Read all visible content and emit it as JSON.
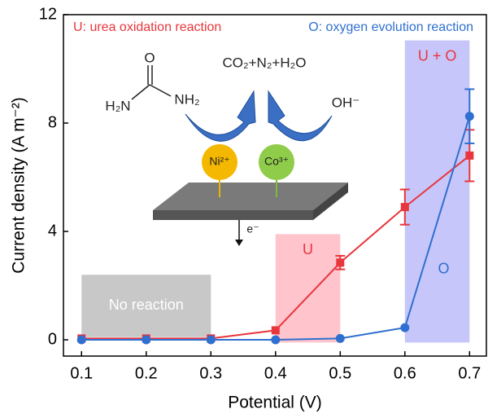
{
  "chart_data": {
    "type": "line",
    "x_label": "Potential (V)",
    "y_label": "Current density (A m⁻²)",
    "xlim": [
      0.072,
      0.726
    ],
    "xticks": [
      0.1,
      0.2,
      0.3,
      0.4,
      0.5,
      0.6,
      0.7
    ],
    "ylim": [
      -0.6,
      12
    ],
    "yticks": [
      0,
      4,
      8,
      12
    ],
    "series": [
      {
        "name": "U: urea oxidation reaction",
        "color": "#e8363c",
        "marker": "square",
        "x": [
          0.1,
          0.2,
          0.3,
          0.4,
          0.5,
          0.6,
          0.7
        ],
        "values": [
          0.05,
          0.05,
          0.05,
          0.35,
          2.85,
          4.9,
          6.8
        ],
        "errors": [
          null,
          null,
          null,
          null,
          0.25,
          0.65,
          0.95
        ]
      },
      {
        "name": "O: oxygen evolution reaction",
        "color": "#2f6fd0",
        "marker": "circle",
        "x": [
          0.1,
          0.2,
          0.3,
          0.4,
          0.5,
          0.6,
          0.7
        ],
        "values": [
          0,
          0,
          0,
          0,
          0.05,
          0.45,
          8.25
        ],
        "errors": [
          null,
          null,
          null,
          null,
          null,
          null,
          1.0
        ]
      }
    ],
    "regions": [
      {
        "label": "No reaction",
        "x": [
          0.1,
          0.3
        ],
        "y": [
          0.1,
          2.4
        ],
        "color": "#c8c8c8",
        "label_color": "#ffffff"
      },
      {
        "label": "U",
        "x": [
          0.4,
          0.5
        ],
        "y": [
          -0.1,
          3.9
        ],
        "color": "#ffc4cc",
        "label_color": "#e8363c"
      },
      {
        "label": "U + O",
        "x": [
          0.6,
          0.7
        ],
        "y": [
          -0.1,
          11.05
        ],
        "color": "#c6c6fa",
        "label_color": "#e8363c"
      }
    ],
    "annotations": [
      {
        "text": "O",
        "x": 0.66,
        "y": 2.6,
        "color": "#2f6fd0"
      }
    ],
    "inset": {
      "carbonyl": "O",
      "amine_left": "H₂N",
      "amine_right": "NH₂",
      "products": "CO₂+N₂+H₂O",
      "hydroxide": "OH⁻",
      "nickel": "Ni²⁺",
      "cobalt": "Co³⁺",
      "electron": "e⁻"
    }
  }
}
